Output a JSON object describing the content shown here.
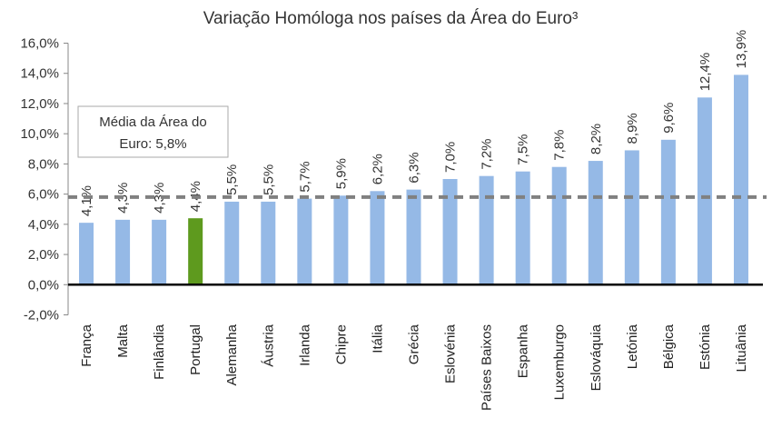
{
  "chart_data": {
    "type": "bar",
    "title": "Variação Homóloga nos países da Área do Euro³",
    "categories": [
      "França",
      "Malta",
      "Finlândia",
      "Portugal",
      "Alemanha",
      "Áustria",
      "Irlanda",
      "Chipre",
      "Itália",
      "Grécia",
      "Eslovénia",
      "Países Baixos",
      "Espanha",
      "Luxemburgo",
      "Eslováquia",
      "Letónia",
      "Bélgica",
      "Estónia",
      "Lituânia"
    ],
    "values": [
      4.1,
      4.3,
      4.3,
      4.4,
      5.5,
      5.5,
      5.7,
      5.9,
      6.2,
      6.3,
      7.0,
      7.2,
      7.5,
      7.8,
      8.2,
      8.9,
      9.6,
      12.4,
      13.9
    ],
    "data_labels": [
      "4,1%",
      "4,3%",
      "4,3%",
      "4,4%",
      "5,5%",
      "5,5%",
      "5,7%",
      "5,9%",
      "6,2%",
      "6,3%",
      "7,0%",
      "7,2%",
      "7,5%",
      "7,8%",
      "8,2%",
      "8,9%",
      "9,6%",
      "12,4%",
      "13,9%"
    ],
    "highlight_category": "Portugal",
    "ylim": [
      -2,
      16
    ],
    "y_ticks": [
      -2,
      0,
      2,
      4,
      6,
      8,
      10,
      12,
      14,
      16
    ],
    "y_tick_labels": [
      "-2,0%",
      "0,0%",
      "2,0%",
      "4,0%",
      "6,0%",
      "8,0%",
      "10,0%",
      "12,0%",
      "14,0%",
      "16,0%"
    ],
    "xlabel": "",
    "ylabel": "",
    "grid": false,
    "average": {
      "value": 5.8,
      "label_line1": "Média da Área do",
      "label_line2": "Euro: 5,8%"
    },
    "colors": {
      "bar": "#95b9e6",
      "highlight": "#5e9a1e",
      "average_line": "#808080",
      "zero_line": "#000000"
    }
  }
}
